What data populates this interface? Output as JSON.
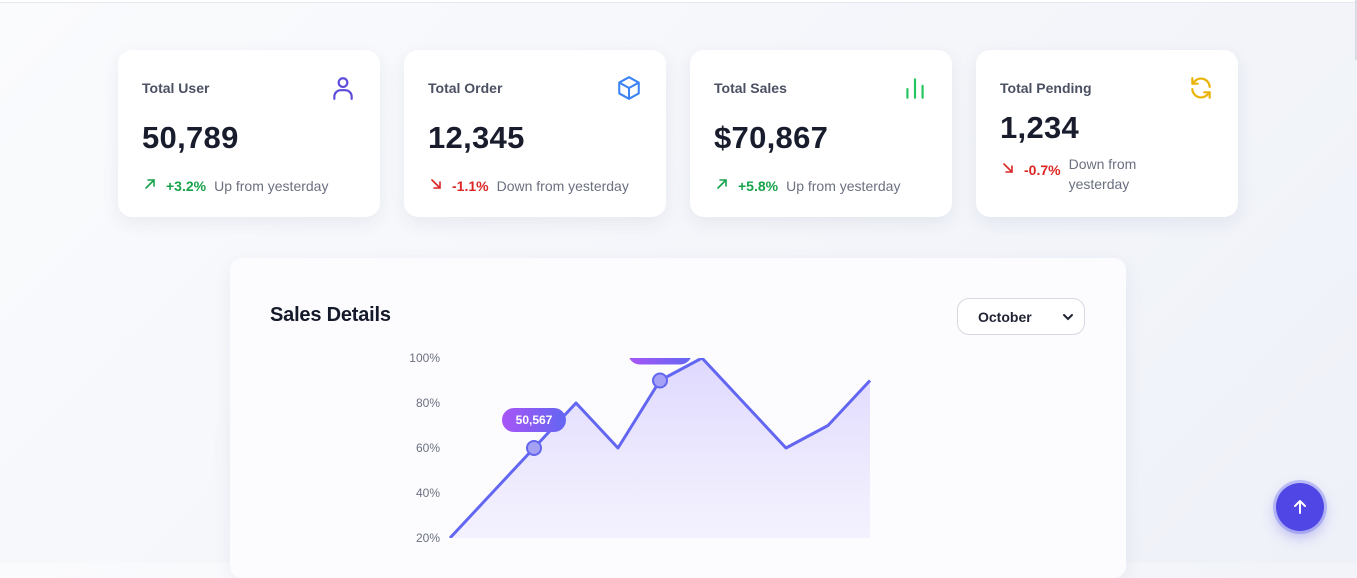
{
  "stats": [
    {
      "title": "Total User",
      "value": "50,789",
      "trend": "+3.2%",
      "direction": "up",
      "text": "Up from yesterday",
      "icon": "user-icon",
      "color": "#5b4bdb"
    },
    {
      "title": "Total Order",
      "value": "12,345",
      "trend": "-1.1%",
      "direction": "down",
      "text": "Down from yesterday",
      "icon": "box-icon",
      "color": "#3b82f6"
    },
    {
      "title": "Total Sales",
      "value": "$70,867",
      "trend": "+5.8%",
      "direction": "up",
      "text": "Up from yesterday",
      "icon": "bar-chart-icon",
      "color": "#22c55e"
    },
    {
      "title": "Total Pending",
      "value": "1,234",
      "trend": "-0.7%",
      "direction": "down",
      "text": "Down from yesterday",
      "icon": "refresh-icon",
      "color": "#eab308"
    }
  ],
  "sales": {
    "title": "Sales Details",
    "month": "October"
  },
  "chart_data": {
    "type": "area",
    "title": "",
    "xlabel": "",
    "ylabel": "",
    "y_ticks": [
      "20%",
      "40%",
      "60%",
      "80%",
      "100%"
    ],
    "ylim": [
      20,
      100
    ],
    "x": [
      1,
      2,
      3,
      4,
      5,
      6,
      7,
      8,
      9,
      10,
      11
    ],
    "values": [
      20,
      40,
      60,
      80,
      60,
      90,
      100,
      80,
      60,
      70,
      90
    ],
    "highlighted_points": [
      {
        "index": 2,
        "label": "50,567"
      },
      {
        "index": 5,
        "label": ""
      }
    ],
    "line_color": "#6366f1",
    "fill_color": "#ddd6fe",
    "grid": false
  },
  "fab": {
    "icon": "arrow-up-icon"
  }
}
